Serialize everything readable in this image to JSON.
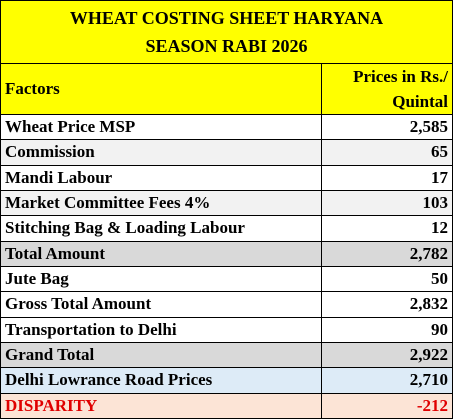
{
  "table": {
    "title": "WHEAT COSTING SHEET HARYANA SEASON RABI 2026",
    "header": [
      "Factors",
      "Prices in Rs./ Quintal"
    ],
    "rows": [
      [
        "Wheat Price MSP",
        "2,585"
      ],
      [
        "Commission",
        "65"
      ],
      [
        "Mandi Labour",
        "17"
      ],
      [
        "Market Committee Fees 4%",
        "103"
      ],
      [
        "Stitching Bag & Loading Labour",
        "12"
      ],
      [
        "Total Amount",
        "2,782"
      ],
      [
        "Jute Bag",
        "50"
      ],
      [
        "Gross Total Amount",
        "2,832"
      ],
      [
        "Transportation to Delhi",
        "90"
      ],
      [
        "Grand Total",
        "2,922"
      ],
      [
        "Delhi Lowrance Road Prices",
        "2,710"
      ],
      [
        "DISPARITY",
        "-212"
      ]
    ]
  }
}
